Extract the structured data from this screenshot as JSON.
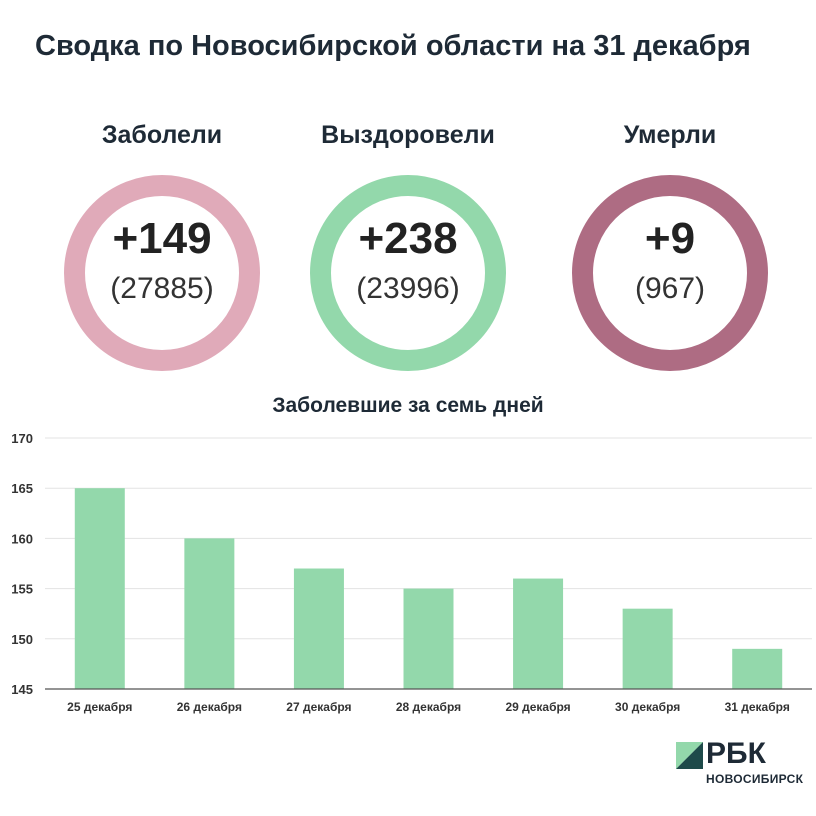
{
  "title": "Сводка по Новосибирской области на 31 декабря",
  "stats": [
    {
      "label": "Заболели",
      "value": "+149",
      "total": "(27885)",
      "color": "#e0aab9"
    },
    {
      "label": "Выздоровели",
      "value": "+238",
      "total": "(23996)",
      "color": "#93d8ab"
    },
    {
      "label": "Умерли",
      "value": "+9",
      "total": "(967)",
      "color": "#ae6c83"
    }
  ],
  "chart_data": {
    "type": "bar",
    "title": "Заболевшие за семь дней",
    "categories": [
      "25 декабря",
      "26 декабря",
      "27 декабря",
      "28 декабря",
      "29 декабря",
      "30 декабря",
      "31 декабря"
    ],
    "values": [
      165,
      160,
      157,
      155,
      156,
      153,
      149
    ],
    "ylim": [
      145,
      170
    ],
    "yticks": [
      145,
      150,
      155,
      160,
      165,
      170
    ],
    "grid": true,
    "bar_color": "#93d8ab",
    "xlabel": "",
    "ylabel": ""
  },
  "logo": {
    "name": "РБК",
    "city": "НОВОСИБИРСК",
    "mark_color_light": "#93d8ab",
    "mark_color_dark": "#1e4a4a"
  }
}
